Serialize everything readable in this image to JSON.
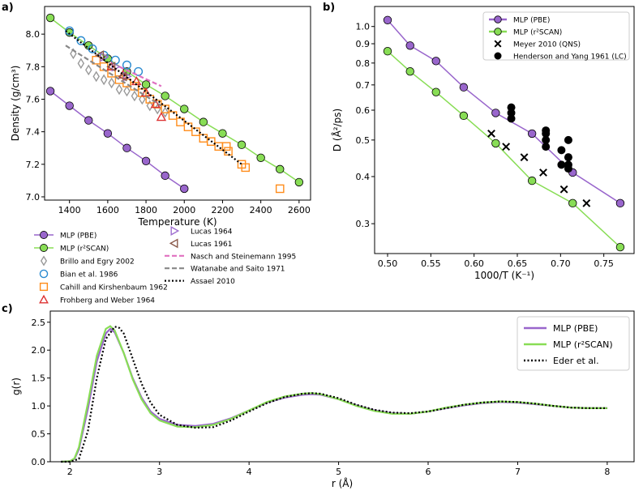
{
  "colors": {
    "pbe": "#9966cc",
    "r2scan": "#88dd55",
    "brillo": "#999999",
    "bian": "#2a8ad0",
    "cahill": "#ff8c1a",
    "frohberg": "#dd3333",
    "lucas1964": "#a070d0",
    "lucas1961": "#8b5a4a",
    "nasch": "#e070c0",
    "watanabe": "#888888",
    "assael": "#000000"
  },
  "chart_data": [
    {
      "panel": "a)",
      "type": "scatter",
      "xlabel": "Temperature (K)",
      "ylabel": "Density (g/cm³)",
      "xlim": [
        1270,
        2660
      ],
      "ylim": [
        6.98,
        8.17
      ],
      "xticks": [
        "1400",
        "1600",
        "1800",
        "2000",
        "2200",
        "2400",
        "2600"
      ],
      "yticks": [
        "7.0",
        "7.2",
        "7.4",
        "7.6",
        "7.8",
        "8.0"
      ],
      "xtick_values": [
        1400,
        1600,
        1800,
        2000,
        2200,
        2400,
        2600
      ],
      "ytick_values": [
        7.0,
        7.2,
        7.4,
        7.6,
        7.8,
        8.0
      ],
      "series": [
        {
          "key": "pbe",
          "name": "MLP (PBE)",
          "style": "line-marker",
          "marker": "circle",
          "x": [
            1300,
            1400,
            1500,
            1600,
            1700,
            1800,
            1900,
            2000
          ],
          "y": [
            7.65,
            7.56,
            7.47,
            7.39,
            7.3,
            7.22,
            7.13,
            7.05
          ]
        },
        {
          "key": "r2scan",
          "name": "MLP (r²SCAN)",
          "style": "line-marker",
          "marker": "circle",
          "x": [
            1300,
            1400,
            1500,
            1600,
            1700,
            1800,
            1900,
            2000,
            2100,
            2200,
            2300,
            2400,
            2500,
            2600
          ],
          "y": [
            8.1,
            8.01,
            7.93,
            7.85,
            7.77,
            7.69,
            7.62,
            7.54,
            7.46,
            7.39,
            7.32,
            7.24,
            7.17,
            7.09
          ]
        },
        {
          "key": "brillo",
          "name": "Brillo and Egry 2002",
          "style": "marker",
          "marker": "diamond",
          "x": [
            1420,
            1460,
            1500,
            1540,
            1580,
            1620,
            1660,
            1700,
            1740,
            1780,
            1820,
            1860,
            1900
          ],
          "y": [
            7.88,
            7.82,
            7.78,
            7.74,
            7.72,
            7.7,
            7.66,
            7.65,
            7.62,
            7.6,
            7.56,
            7.54,
            7.52
          ]
        },
        {
          "key": "bian",
          "name": "Bian et al. 1986",
          "style": "marker",
          "marker": "circle-open",
          "x": [
            1400,
            1460,
            1520,
            1580,
            1640,
            1700,
            1760
          ],
          "y": [
            8.02,
            7.96,
            7.91,
            7.87,
            7.84,
            7.81,
            7.77
          ]
        },
        {
          "key": "cahill",
          "name": "Cahill and Kirshenbaum 1962",
          "style": "marker",
          "marker": "square-open",
          "x": [
            1540,
            1580,
            1620,
            1660,
            1700,
            1740,
            1780,
            1820,
            1860,
            1900,
            1940,
            1980,
            2020,
            2060,
            2100,
            2140,
            2180,
            2220,
            2230,
            2300,
            2320,
            2500
          ],
          "y": [
            7.84,
            7.8,
            7.76,
            7.72,
            7.7,
            7.68,
            7.64,
            7.6,
            7.57,
            7.54,
            7.5,
            7.46,
            7.43,
            7.4,
            7.36,
            7.34,
            7.31,
            7.31,
            7.28,
            7.2,
            7.18,
            7.05
          ]
        },
        {
          "key": "frohberg",
          "name": "Frohberg and Weber 1964",
          "style": "marker",
          "marker": "triangle-up",
          "x": [
            1620,
            1680,
            1750,
            1800,
            1850,
            1880
          ],
          "y": [
            7.8,
            7.75,
            7.71,
            7.64,
            7.57,
            7.49
          ]
        },
        {
          "key": "lucas1964",
          "name": "Lucas 1964",
          "style": "marker",
          "marker": "triangle-right",
          "x": [
            1580,
            1640,
            1700
          ],
          "y": [
            7.86,
            7.8,
            7.74
          ]
        },
        {
          "key": "lucas1961",
          "name": "Lucas 1961",
          "style": "marker",
          "marker": "triangle-left",
          "x": [
            1560,
            1620,
            1680
          ],
          "y": [
            7.87,
            7.8,
            7.74
          ]
        },
        {
          "key": "nasch",
          "name": "Nasch and Steinemann 1995",
          "style": "dashed",
          "x": [
            1660,
            1880
          ],
          "y": [
            7.8,
            7.68
          ]
        },
        {
          "key": "watanabe",
          "name": "Watanabe and Saito 1971",
          "style": "dashed",
          "x": [
            1380,
            1880
          ],
          "y": [
            7.93,
            7.56
          ]
        },
        {
          "key": "assael",
          "name": "Assael 2010",
          "style": "dotted",
          "x": [
            1380,
            2300
          ],
          "y": [
            8.02,
            7.2
          ]
        }
      ]
    },
    {
      "panel": "b)",
      "type": "line",
      "xlabel": "1000/T (K⁻¹)",
      "ylabel": "D (Å²/ps)",
      "yscale": "log",
      "xlim": [
        0.485,
        0.785
      ],
      "ylim": [
        0.25,
        1.13
      ],
      "xticks": [
        "0.50",
        "0.55",
        "0.60",
        "0.65",
        "0.70",
        "0.75"
      ],
      "xtick_values": [
        0.5,
        0.55,
        0.6,
        0.65,
        0.7,
        0.75
      ],
      "yticks": [
        "0.3",
        "0.4",
        "0.5",
        "0.6",
        "0.7",
        "0.8",
        "0.9",
        "1.0"
      ],
      "ytick_values": [
        0.3,
        0.4,
        0.5,
        0.6,
        0.7,
        0.8,
        0.9,
        1.0
      ],
      "series": [
        {
          "key": "pbe",
          "name": "MLP (PBE)",
          "style": "line-marker",
          "marker": "circle",
          "x": [
            0.5,
            0.526,
            0.556,
            0.588,
            0.625,
            0.667,
            0.714,
            0.769
          ],
          "y": [
            1.04,
            0.89,
            0.81,
            0.69,
            0.59,
            0.52,
            0.41,
            0.34
          ]
        },
        {
          "key": "r2scan",
          "name": "MLP (r²SCAN)",
          "style": "line-marker",
          "marker": "circle",
          "x": [
            0.5,
            0.526,
            0.556,
            0.588,
            0.625,
            0.667,
            0.714,
            0.769
          ],
          "y": [
            0.86,
            0.76,
            0.67,
            0.58,
            0.49,
            0.39,
            0.34,
            0.26
          ]
        },
        {
          "key": "meyer",
          "name": "Meyer 2010 (QNS)",
          "style": "marker",
          "marker": "cross",
          "x": [
            0.62,
            0.637,
            0.658,
            0.68,
            0.704,
            0.73
          ],
          "y": [
            0.52,
            0.48,
            0.45,
            0.41,
            0.37,
            0.34
          ]
        },
        {
          "key": "henderson",
          "name": "Henderson and Yang 1961 (LC)",
          "style": "marker",
          "marker": "dot",
          "x": [
            0.643,
            0.643,
            0.643,
            0.683,
            0.683,
            0.683,
            0.683,
            0.701,
            0.701,
            0.709,
            0.709,
            0.709,
            0.709
          ],
          "y": [
            0.61,
            0.59,
            0.57,
            0.53,
            0.52,
            0.5,
            0.48,
            0.47,
            0.43,
            0.5,
            0.45,
            0.43,
            0.42
          ]
        }
      ]
    },
    {
      "panel": "c)",
      "type": "line",
      "xlabel": "r (Å)",
      "ylabel": "g(r)",
      "xlim": [
        1.78,
        8.3
      ],
      "ylim": [
        0.0,
        2.7
      ],
      "xticks": [
        "2",
        "3",
        "4",
        "5",
        "6",
        "7",
        "8"
      ],
      "xtick_values": [
        2,
        3,
        4,
        5,
        6,
        7,
        8
      ],
      "yticks": [
        "0.0",
        "0.5",
        "1.0",
        "1.5",
        "2.0",
        "2.5"
      ],
      "ytick_values": [
        0.0,
        0.5,
        1.0,
        1.5,
        2.0,
        2.5
      ],
      "series": [
        {
          "key": "pbe",
          "name": "MLP (PBE)",
          "style": "solid",
          "x": [
            1.9,
            2.0,
            2.05,
            2.1,
            2.2,
            2.3,
            2.4,
            2.45,
            2.5,
            2.6,
            2.7,
            2.8,
            2.9,
            3.0,
            3.2,
            3.4,
            3.6,
            3.8,
            4.0,
            4.2,
            4.4,
            4.6,
            4.7,
            4.8,
            5.0,
            5.2,
            5.4,
            5.6,
            5.8,
            6.0,
            6.2,
            6.4,
            6.6,
            6.8,
            7.0,
            7.2,
            7.4,
            7.6,
            7.8,
            8.0
          ],
          "y": [
            0.0,
            0.01,
            0.05,
            0.22,
            0.95,
            1.8,
            2.3,
            2.38,
            2.32,
            1.95,
            1.5,
            1.15,
            0.9,
            0.77,
            0.66,
            0.64,
            0.68,
            0.78,
            0.92,
            1.06,
            1.15,
            1.2,
            1.21,
            1.2,
            1.12,
            1.01,
            0.92,
            0.87,
            0.86,
            0.9,
            0.96,
            1.01,
            1.05,
            1.07,
            1.06,
            1.03,
            1.0,
            0.97,
            0.96,
            0.96
          ]
        },
        {
          "key": "r2scan",
          "name": "MLP (r²SCAN)",
          "style": "solid",
          "x": [
            1.9,
            2.0,
            2.05,
            2.1,
            2.2,
            2.3,
            2.4,
            2.45,
            2.5,
            2.6,
            2.7,
            2.8,
            2.9,
            3.0,
            3.2,
            3.4,
            3.6,
            3.8,
            4.0,
            4.2,
            4.4,
            4.6,
            4.7,
            4.8,
            5.0,
            5.2,
            5.4,
            5.6,
            5.8,
            6.0,
            6.2,
            6.4,
            6.6,
            6.8,
            7.0,
            7.2,
            7.4,
            7.6,
            7.8,
            8.0
          ],
          "y": [
            0.0,
            0.01,
            0.06,
            0.26,
            1.05,
            1.9,
            2.38,
            2.43,
            2.35,
            1.95,
            1.48,
            1.12,
            0.87,
            0.74,
            0.63,
            0.62,
            0.66,
            0.77,
            0.92,
            1.07,
            1.17,
            1.22,
            1.23,
            1.21,
            1.12,
            1.0,
            0.91,
            0.86,
            0.86,
            0.9,
            0.97,
            1.02,
            1.06,
            1.08,
            1.07,
            1.04,
            1.0,
            0.97,
            0.96,
            0.96
          ]
        },
        {
          "key": "assael",
          "name": "Eder et al.",
          "style": "dotted",
          "x": [
            1.9,
            2.0,
            2.1,
            2.2,
            2.3,
            2.4,
            2.5,
            2.55,
            2.6,
            2.7,
            2.8,
            2.9,
            3.0,
            3.2,
            3.4,
            3.6,
            3.8,
            4.0,
            4.2,
            4.4,
            4.6,
            4.7,
            4.8,
            5.0,
            5.2,
            5.4,
            5.6,
            5.8,
            6.0,
            6.2,
            6.4,
            6.6,
            6.8,
            7.0,
            7.2,
            7.4,
            7.6,
            7.8,
            8.0
          ],
          "y": [
            0.0,
            0.0,
            0.05,
            0.55,
            1.5,
            2.2,
            2.42,
            2.4,
            2.3,
            1.85,
            1.4,
            1.06,
            0.84,
            0.66,
            0.61,
            0.62,
            0.74,
            0.9,
            1.05,
            1.16,
            1.22,
            1.23,
            1.22,
            1.14,
            1.02,
            0.93,
            0.88,
            0.87,
            0.9,
            0.96,
            1.02,
            1.06,
            1.08,
            1.07,
            1.04,
            1.0,
            0.97,
            0.96,
            0.96
          ]
        }
      ]
    }
  ]
}
